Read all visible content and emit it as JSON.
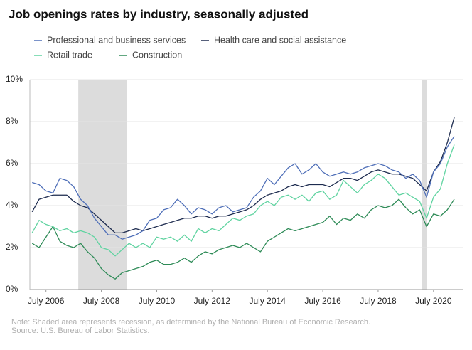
{
  "chart_data": {
    "type": "line",
    "title": "Job openings rates by industry, seasonally adjusted",
    "note": "Note: Shaded area represents recession, as determined by the National Bureau of Economic Research.",
    "source": "Source: U.S. Bureau of Labor Statistics.",
    "grid": true,
    "recession_color": "#dcdcdc",
    "recessions": [
      {
        "start": "2007-09",
        "end": "2009-06"
      },
      {
        "start": "2020-02",
        "end": "2020-04"
      }
    ],
    "xlim": [
      "2005-12",
      "2021-08"
    ],
    "xticks": [
      {
        "value": "2006-07",
        "label": "July 2006"
      },
      {
        "value": "2008-07",
        "label": "July 2008"
      },
      {
        "value": "2010-07",
        "label": "July 2010"
      },
      {
        "value": "2012-07",
        "label": "July 2012"
      },
      {
        "value": "2014-07",
        "label": "July 2014"
      },
      {
        "value": "2016-07",
        "label": "July 2016"
      },
      {
        "value": "2018-07",
        "label": "July 2018"
      },
      {
        "value": "2020-07",
        "label": "July 2020"
      }
    ],
    "ylim": [
      0,
      10
    ],
    "yticks": [
      {
        "value": 0,
        "label": "0%"
      },
      {
        "value": 2,
        "label": "2%"
      },
      {
        "value": 4,
        "label": "4%"
      },
      {
        "value": 6,
        "label": "6%"
      },
      {
        "value": 8,
        "label": "8%"
      },
      {
        "value": 10,
        "label": "10%"
      }
    ],
    "x": [
      "2006-01",
      "2006-04",
      "2006-07",
      "2006-10",
      "2007-01",
      "2007-04",
      "2007-07",
      "2007-10",
      "2008-01",
      "2008-04",
      "2008-07",
      "2008-10",
      "2009-01",
      "2009-04",
      "2009-07",
      "2009-10",
      "2010-01",
      "2010-04",
      "2010-07",
      "2010-10",
      "2011-01",
      "2011-04",
      "2011-07",
      "2011-10",
      "2012-01",
      "2012-04",
      "2012-07",
      "2012-10",
      "2013-01",
      "2013-04",
      "2013-07",
      "2013-10",
      "2014-01",
      "2014-04",
      "2014-07",
      "2014-10",
      "2015-01",
      "2015-04",
      "2015-07",
      "2015-10",
      "2016-01",
      "2016-04",
      "2016-07",
      "2016-10",
      "2017-01",
      "2017-04",
      "2017-07",
      "2017-10",
      "2018-01",
      "2018-04",
      "2018-07",
      "2018-10",
      "2019-01",
      "2019-04",
      "2019-07",
      "2019-10",
      "2020-01",
      "2020-04",
      "2020-07",
      "2020-10",
      "2021-01",
      "2021-04"
    ],
    "series": [
      {
        "name": "Professional and business services",
        "color": "#4f6fb8",
        "values": [
          5.1,
          5.0,
          4.7,
          4.6,
          5.3,
          5.2,
          4.9,
          4.3,
          4.0,
          3.4,
          3.0,
          2.6,
          2.6,
          2.4,
          2.5,
          2.6,
          2.8,
          3.3,
          3.4,
          3.8,
          3.9,
          4.3,
          4.0,
          3.6,
          3.9,
          3.8,
          3.6,
          3.9,
          4.0,
          3.7,
          3.8,
          3.9,
          4.4,
          4.7,
          5.3,
          5.0,
          5.4,
          5.8,
          6.0,
          5.5,
          5.7,
          6.0,
          5.6,
          5.4,
          5.5,
          5.6,
          5.5,
          5.6,
          5.8,
          5.9,
          6.0,
          5.9,
          5.7,
          5.6,
          5.3,
          5.5,
          5.2,
          4.4,
          5.6,
          6.0,
          6.8,
          7.3
        ]
      },
      {
        "name": "Health care and social assistance",
        "color": "#1d2b4f",
        "values": [
          3.7,
          4.3,
          4.4,
          4.5,
          4.5,
          4.5,
          4.2,
          4.0,
          3.9,
          3.6,
          3.3,
          3.0,
          2.7,
          2.7,
          2.8,
          2.9,
          2.8,
          2.9,
          3.0,
          3.1,
          3.2,
          3.3,
          3.4,
          3.4,
          3.5,
          3.5,
          3.4,
          3.5,
          3.5,
          3.6,
          3.7,
          3.8,
          4.0,
          4.3,
          4.5,
          4.6,
          4.7,
          4.9,
          5.0,
          4.9,
          5.0,
          5.0,
          5.0,
          4.9,
          5.1,
          5.3,
          5.3,
          5.2,
          5.4,
          5.6,
          5.7,
          5.6,
          5.5,
          5.5,
          5.4,
          5.3,
          5.0,
          4.7,
          5.6,
          6.1,
          7.0,
          8.2
        ]
      },
      {
        "name": "Retail trade",
        "color": "#5fd3a0",
        "values": [
          2.7,
          3.3,
          3.1,
          3.0,
          2.8,
          2.9,
          2.7,
          2.8,
          2.7,
          2.5,
          2.0,
          1.9,
          1.6,
          1.9,
          2.2,
          2.0,
          2.2,
          2.0,
          2.5,
          2.4,
          2.5,
          2.3,
          2.6,
          2.3,
          2.9,
          2.7,
          2.9,
          2.8,
          3.1,
          3.4,
          3.3,
          3.5,
          3.6,
          4.0,
          4.2,
          4.0,
          4.4,
          4.5,
          4.3,
          4.5,
          4.2,
          4.6,
          4.7,
          4.3,
          4.5,
          5.2,
          4.9,
          4.6,
          5.0,
          5.2,
          5.5,
          5.3,
          4.9,
          4.5,
          4.6,
          4.4,
          4.2,
          3.4,
          4.4,
          4.8,
          6.0,
          6.9
        ]
      },
      {
        "name": "Construction",
        "color": "#2e8b57",
        "values": [
          2.2,
          2.0,
          2.5,
          3.0,
          2.3,
          2.1,
          2.0,
          2.2,
          1.8,
          1.5,
          1.0,
          0.7,
          0.5,
          0.8,
          0.9,
          1.0,
          1.1,
          1.3,
          1.4,
          1.2,
          1.2,
          1.3,
          1.5,
          1.3,
          1.6,
          1.8,
          1.7,
          1.9,
          2.0,
          2.1,
          2.0,
          2.2,
          2.0,
          1.8,
          2.3,
          2.5,
          2.7,
          2.9,
          2.8,
          2.9,
          3.0,
          3.1,
          3.2,
          3.5,
          3.1,
          3.4,
          3.3,
          3.6,
          3.4,
          3.8,
          4.0,
          3.9,
          4.0,
          4.3,
          3.9,
          3.6,
          3.8,
          3.0,
          3.6,
          3.5,
          3.8,
          4.3
        ]
      }
    ]
  }
}
